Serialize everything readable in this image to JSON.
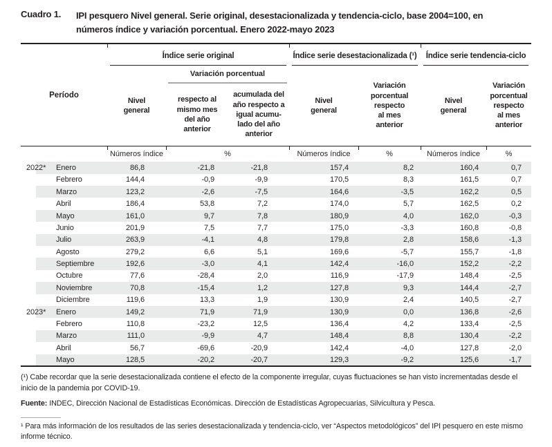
{
  "page": {
    "title_label": "Cuadro 1.",
    "title": "IPI pesquero Nivel general. Serie original, desestacionalizada y tendencia-ciclo, base 2004=100, en\nnúmeros índice y variación porcentual. Enero 2022-mayo 2023"
  },
  "table": {
    "period_header": "Período",
    "groups": {
      "original": "Índice serie original",
      "desestacionalizada": "Índice serie desestacionalizada (¹)",
      "tendencia": "Índice serie tendencia-ciclo"
    },
    "subgroup_variacion": "Variación porcentual",
    "headers": {
      "nivel_general": "Nivel\ngeneral",
      "var_mismo_mes": "respecto al\nmismo mes\ndel año\nanterior",
      "var_acumulada": "acumulada del\naño respecto a\nigual acumu-\nlado del año\nanterior",
      "var_mes_anterior": "Variación\nporcentual\nrespecto\nal mes\nanterior"
    },
    "units": {
      "indice": "Números índice",
      "pct": "%"
    },
    "rows": [
      {
        "year": "2022*",
        "month": "Enero",
        "values": [
          "86,8",
          "-21,8",
          "-21,8",
          "157,4",
          "8,2",
          "160,4",
          "0,7"
        ]
      },
      {
        "year": "",
        "month": "Febrero",
        "values": [
          "144,4",
          "-0,9",
          "-9,9",
          "170,5",
          "8,3",
          "161,5",
          "0,7"
        ]
      },
      {
        "year": "",
        "month": "Marzo",
        "values": [
          "123,2",
          "-2,6",
          "-7,5",
          "164,6",
          "-3,5",
          "162,2",
          "0,5"
        ]
      },
      {
        "year": "",
        "month": "Abril",
        "values": [
          "186,4",
          "53,8",
          "7,2",
          "174,0",
          "5,7",
          "162,5",
          "0,2"
        ]
      },
      {
        "year": "",
        "month": "Mayo",
        "values": [
          "161,0",
          "9,7",
          "7,8",
          "180,9",
          "4,0",
          "162,0",
          "-0,3"
        ]
      },
      {
        "year": "",
        "month": "Junio",
        "values": [
          "201,9",
          "7,5",
          "7,7",
          "175,0",
          "-3,3",
          "160,8",
          "-0,8"
        ]
      },
      {
        "year": "",
        "month": "Julio",
        "values": [
          "263,9",
          "-4,1",
          "4,8",
          "179,8",
          "2,8",
          "158,6",
          "-1,3"
        ]
      },
      {
        "year": "",
        "month": "Agosto",
        "values": [
          "279,2",
          "6,6",
          "5,1",
          "169,6",
          "-5,7",
          "155,7",
          "-1,8"
        ]
      },
      {
        "year": "",
        "month": "Septiembre",
        "values": [
          "192,6",
          "-3,0",
          "4,1",
          "142,4",
          "-16,0",
          "152,2",
          "-2,2"
        ]
      },
      {
        "year": "",
        "month": "Octubre",
        "values": [
          "77,6",
          "-28,4",
          "2,0",
          "116,9",
          "-17,9",
          "148,4",
          "-2,5"
        ]
      },
      {
        "year": "",
        "month": "Noviembre",
        "values": [
          "70,8",
          "-15,4",
          "1,2",
          "127,8",
          "9,3",
          "144,4",
          "-2,7"
        ]
      },
      {
        "year": "",
        "month": "Diciembre",
        "values": [
          "119,6",
          "13,3",
          "1,9",
          "130,9",
          "2,4",
          "140,5",
          "-2,7"
        ]
      },
      {
        "year": "2023*",
        "month": "Enero",
        "values": [
          "149,2",
          "71,9",
          "71,9",
          "130,9",
          "0,0",
          "136,8",
          "-2,6"
        ]
      },
      {
        "year": "",
        "month": "Febrero",
        "values": [
          "110,8",
          "-23,2",
          "12,5",
          "136,4",
          "4,2",
          "133,4",
          "-2,5"
        ]
      },
      {
        "year": "",
        "month": "Marzo",
        "values": [
          "111,0",
          "-9,9",
          "4,7",
          "148,4",
          "8,8",
          "130,4",
          "-2,2"
        ]
      },
      {
        "year": "",
        "month": "Abril",
        "values": [
          "56,7",
          "-69,6",
          "-20,9",
          "142,4",
          "-4,0",
          "127,8",
          "-2,0"
        ]
      },
      {
        "year": "",
        "month": "Mayo",
        "values": [
          "128,5",
          "-20,2",
          "-20,7",
          "129,3",
          "-9,2",
          "125,6",
          "-1,7"
        ]
      }
    ]
  },
  "footnotes": {
    "note1": "(¹) Cabe recordar que la serie desestacionalizada contiene el efecto de la componente irregular, cuyas fluctuaciones se han visto incrementadas desde el inicio de la pandemia por COVID-19.",
    "fuente_label": "Fuente:",
    "fuente_text": "INDEC, Dirección Nacional de Estadísticas Económicas. Dirección de Estadísticas Agropecuarias, Silvicultura y Pesca.",
    "note2": "¹ Para más información de los resultados de las series desestacionalizada y tendencia-ciclo, ver “Aspectos metodológicos” del IPI pesquero en este mismo informe técnico."
  }
}
